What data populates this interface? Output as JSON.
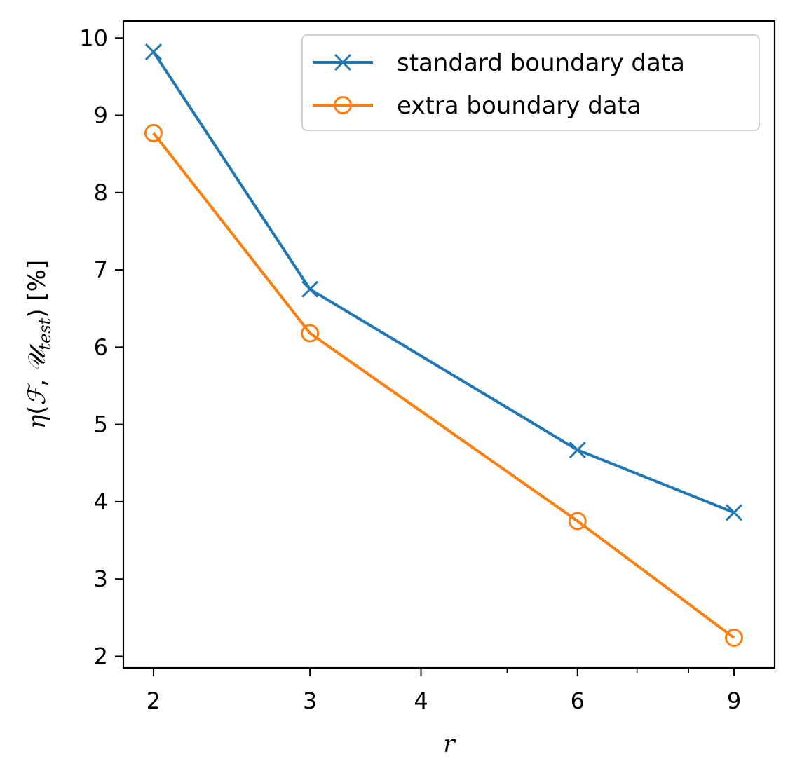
{
  "chart_data": {
    "type": "line",
    "title": "",
    "xlabel": "r",
    "ylabel": {
      "eta": "η",
      "open": "(",
      "F": "ℱ",
      "comma": ", ",
      "U": "𝒰",
      "sub": "test",
      "close": ")",
      "unit": " [%]"
    },
    "x_scale": "log",
    "xlim": [
      1.85,
      10.0
    ],
    "ylim": [
      1.85,
      10.22
    ],
    "x_ticks": [
      2,
      3,
      4,
      6,
      9
    ],
    "x_tick_labels": [
      "2",
      "3",
      "4",
      "6",
      "9"
    ],
    "x_minor_ticks": [
      5,
      7,
      8
    ],
    "y_ticks": [
      2,
      3,
      4,
      5,
      6,
      7,
      8,
      9,
      10
    ],
    "y_tick_labels": [
      "2",
      "3",
      "4",
      "5",
      "6",
      "7",
      "8",
      "9",
      "10"
    ],
    "grid": false,
    "legend_position": "top-right",
    "x": [
      2,
      3,
      6,
      9
    ],
    "series": [
      {
        "name": "standard boundary data",
        "values": [
          9.82,
          6.75,
          4.67,
          3.86
        ],
        "color": "#1f77b4",
        "marker": "x"
      },
      {
        "name": "extra boundary data",
        "values": [
          8.77,
          6.18,
          3.75,
          2.24
        ],
        "color": "#ff7f0e",
        "marker": "circle"
      }
    ]
  }
}
